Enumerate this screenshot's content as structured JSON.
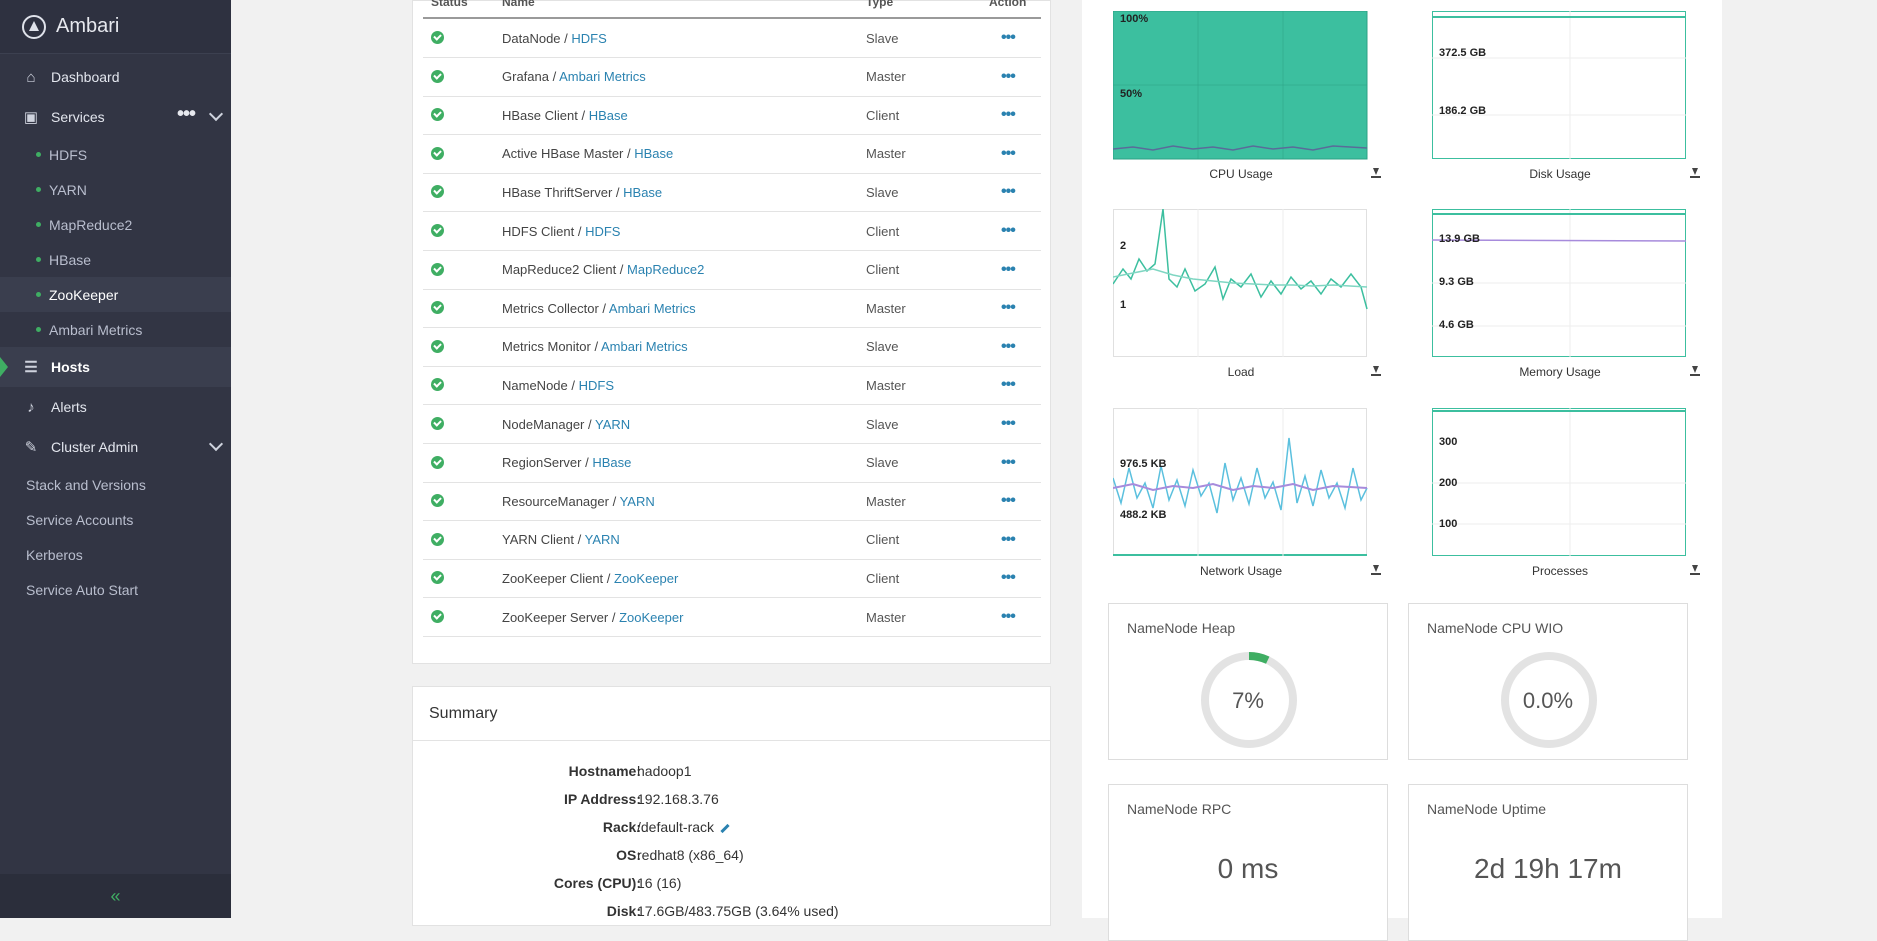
{
  "sidebar": {
    "brand": "Ambari",
    "dashboard": "Dashboard",
    "services": "Services",
    "services_more": "•••",
    "service_items": [
      "HDFS",
      "YARN",
      "MapReduce2",
      "HBase",
      "ZooKeeper",
      "Ambari Metrics"
    ],
    "hosts": "Hosts",
    "alerts": "Alerts",
    "cluster_admin": "Cluster Admin",
    "admin_items": [
      "Stack and Versions",
      "Service Accounts",
      "Kerberos",
      "Service Auto Start"
    ],
    "collapse": "«"
  },
  "components": {
    "headers": {
      "status": "Status",
      "name": "Name",
      "type": "Type",
      "action": "Action"
    },
    "rows": [
      {
        "name": "DataNode",
        "service": "HDFS",
        "type": "Slave"
      },
      {
        "name": "Grafana",
        "service": "Ambari Metrics",
        "type": "Master"
      },
      {
        "name": "HBase Client",
        "service": "HBase",
        "type": "Client"
      },
      {
        "name": "Active HBase Master",
        "service": "HBase",
        "type": "Master"
      },
      {
        "name": "HBase ThriftServer",
        "service": "HBase",
        "type": "Slave"
      },
      {
        "name": "HDFS Client",
        "service": "HDFS",
        "type": "Client"
      },
      {
        "name": "MapReduce2 Client",
        "service": "MapReduce2",
        "type": "Client"
      },
      {
        "name": "Metrics Collector",
        "service": "Ambari Metrics",
        "type": "Master"
      },
      {
        "name": "Metrics Monitor",
        "service": "Ambari Metrics",
        "type": "Slave"
      },
      {
        "name": "NameNode",
        "service": "HDFS",
        "type": "Master"
      },
      {
        "name": "NodeManager",
        "service": "YARN",
        "type": "Slave"
      },
      {
        "name": "RegionServer",
        "service": "HBase",
        "type": "Slave"
      },
      {
        "name": "ResourceManager",
        "service": "YARN",
        "type": "Master"
      },
      {
        "name": "YARN Client",
        "service": "YARN",
        "type": "Client"
      },
      {
        "name": "ZooKeeper Client",
        "service": "ZooKeeper",
        "type": "Client"
      },
      {
        "name": "ZooKeeper Server",
        "service": "ZooKeeper",
        "type": "Master"
      }
    ],
    "action_glyph": "•••"
  },
  "summary": {
    "title": "Summary",
    "fields": [
      {
        "label": "Hostname:",
        "value": "hadoop1"
      },
      {
        "label": "IP Address:",
        "value": "192.168.3.76"
      },
      {
        "label": "Rack:",
        "value": "/default-rack"
      },
      {
        "label": "OS:",
        "value": "redhat8 (x86_64)"
      },
      {
        "label": "Cores (CPU):",
        "value": "16 (16)"
      },
      {
        "label": "Disk:",
        "value": "17.6GB/483.75GB (3.64% used)"
      }
    ]
  },
  "charts": {
    "cpu": {
      "caption": "CPU Usage",
      "ticks": [
        "100%",
        "50%"
      ]
    },
    "disk": {
      "caption": "Disk Usage",
      "ticks": [
        "372.5 GB",
        "186.2 GB"
      ]
    },
    "load": {
      "caption": "Load",
      "ticks": [
        "2",
        "1"
      ]
    },
    "memory": {
      "caption": "Memory Usage",
      "ticks": [
        "13.9 GB",
        "9.3 GB",
        "4.6 GB"
      ]
    },
    "network": {
      "caption": "Network Usage",
      "ticks": [
        "976.5 KB",
        "488.2 KB"
      ]
    },
    "processes": {
      "caption": "Processes",
      "ticks": [
        "300",
        "200",
        "100"
      ]
    }
  },
  "widgets": {
    "heap": {
      "title": "NameNode Heap",
      "value": "7%",
      "fraction": 0.07
    },
    "cpu_wio": {
      "title": "NameNode CPU WIO",
      "value": "0.0%",
      "fraction": 0.0
    },
    "rpc": {
      "title": "NameNode RPC",
      "value": "0 ms"
    },
    "uptime": {
      "title": "NameNode Uptime",
      "value": "2d 19h 17m"
    }
  },
  "colors": {
    "accent_green": "#3fae63",
    "chart_teal": "#3cbf9f",
    "link_blue": "#2a82b0"
  }
}
